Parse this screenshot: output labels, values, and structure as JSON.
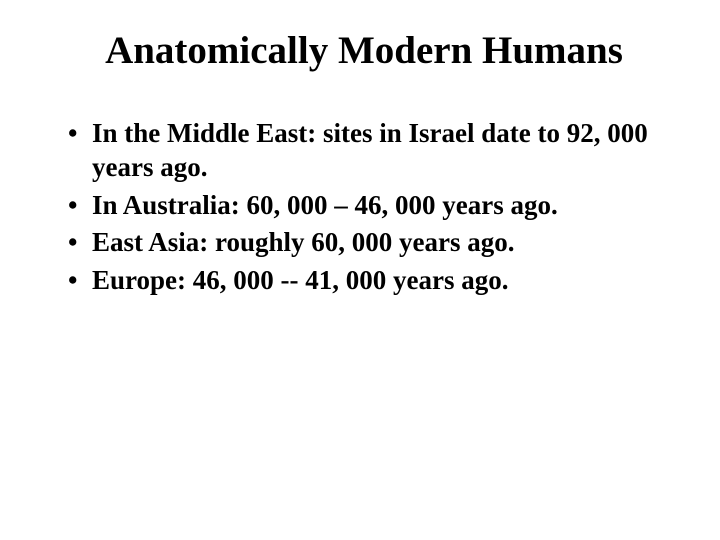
{
  "slide": {
    "title": "Anatomically Modern Humans",
    "bullets": [
      "In the Middle East: sites in Israel date to 92, 000 years ago.",
      "In Australia: 60, 000 – 46, 000 years ago.",
      "East Asia: roughly 60, 000 years ago.",
      "Europe: 46, 000 -- 41, 000 years ago."
    ],
    "colors": {
      "background": "#ffffff",
      "text": "#000000"
    },
    "typography": {
      "family": "Times New Roman",
      "title_fontsize": 39,
      "title_weight": "bold",
      "body_fontsize": 27,
      "body_weight": "bold"
    }
  }
}
